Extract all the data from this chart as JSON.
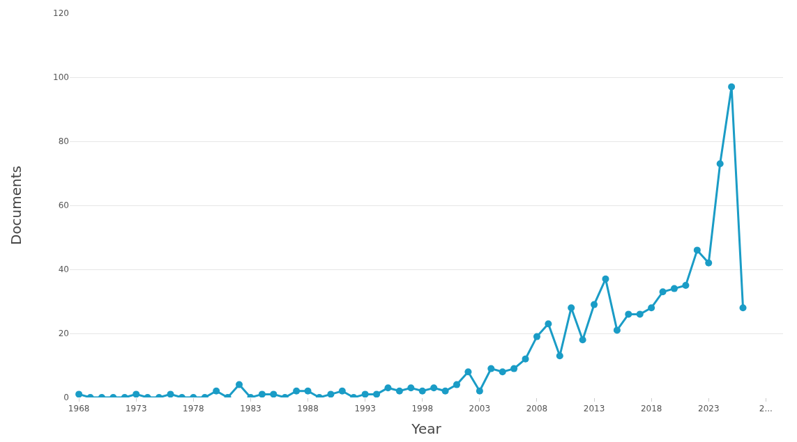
{
  "chart_data": {
    "type": "line",
    "xlabel": "Year",
    "ylabel": "Documents",
    "x": [
      1968,
      1969,
      1970,
      1971,
      1972,
      1973,
      1974,
      1975,
      1976,
      1977,
      1978,
      1979,
      1980,
      1981,
      1982,
      1983,
      1984,
      1985,
      1986,
      1987,
      1988,
      1989,
      1990,
      1991,
      1992,
      1993,
      1994,
      1995,
      1996,
      1997,
      1998,
      1999,
      2000,
      2001,
      2002,
      2003,
      2004,
      2005,
      2006,
      2007,
      2008,
      2009,
      2010,
      2011,
      2012,
      2013,
      2014,
      2015,
      2016,
      2017,
      2018,
      2019,
      2020,
      2021,
      2022,
      2023,
      2024,
      2025,
      2026
    ],
    "series": [
      {
        "color": "#1a9cc6",
        "values": [
          1,
          0,
          0,
          0,
          0,
          1,
          0,
          0,
          1,
          0,
          0,
          0,
          2,
          0,
          4,
          0,
          1,
          1,
          0,
          2,
          2,
          0,
          1,
          2,
          0,
          1,
          1,
          3,
          2,
          3,
          2,
          3,
          2,
          4,
          8,
          2,
          9,
          8,
          9,
          12,
          19,
          23,
          13,
          28,
          18,
          29,
          37,
          21,
          26,
          26,
          28,
          33,
          34,
          35,
          46,
          42,
          73,
          97,
          28
        ]
      }
    ],
    "xlim": [
      1967.2,
      2029.5
    ],
    "xticks": [
      1968,
      1973,
      1978,
      1983,
      1988,
      1993,
      1998,
      2003,
      2008,
      2013,
      2018,
      2023,
      {
        "value": 2028,
        "label": "2..."
      }
    ],
    "ylim": [
      0,
      120
    ],
    "yticks": [
      0,
      20,
      40,
      60,
      80,
      100,
      120
    ],
    "grid": "y",
    "marker": "circle",
    "line_style": "solid"
  }
}
